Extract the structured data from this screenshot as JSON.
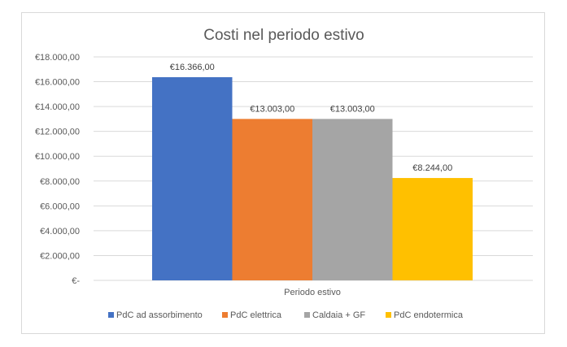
{
  "chart_data": {
    "type": "bar",
    "title": "Costi nel periodo estivo",
    "xlabel": "",
    "ylabel": "",
    "categories": [
      "Periodo estivo"
    ],
    "series": [
      {
        "name": "PdC ad assorbimento",
        "values": [
          16366
        ],
        "label": "€16.366,00",
        "color": "#4472C4"
      },
      {
        "name": "PdC elettrica",
        "values": [
          13003
        ],
        "label": "€13.003,00",
        "color": "#ED7D31"
      },
      {
        "name": "Caldaia + GF",
        "values": [
          13003
        ],
        "label": "€13.003,00",
        "color": "#A5A5A5"
      },
      {
        "name": "PdC endotermica",
        "values": [
          8244
        ],
        "label": "€8.244,00",
        "color": "#FFC000"
      }
    ],
    "ylim": [
      0,
      18000
    ],
    "yticks": [
      0,
      2000,
      4000,
      6000,
      8000,
      10000,
      12000,
      14000,
      16000,
      18000
    ],
    "ytick_labels": [
      "€-",
      "€2.000,00",
      "€4.000,00",
      "€6.000,00",
      "€8.000,00",
      "€10.000,00",
      "€12.000,00",
      "€14.000,00",
      "€16.000,00",
      "€18.000,00"
    ],
    "grid": true,
    "legend_position": "bottom"
  }
}
